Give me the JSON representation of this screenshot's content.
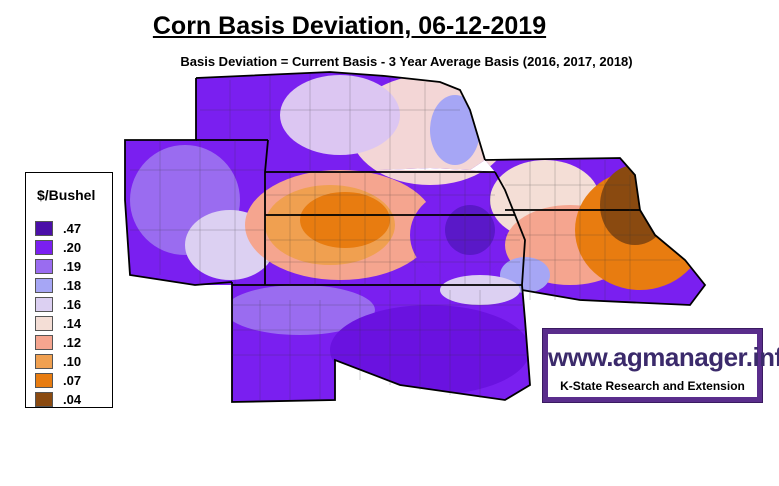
{
  "title": "Corn Basis Deviation, 06-12-2019",
  "subtitle": "Basis Deviation = Current Basis - 3 Year Average Basis (2016, 2017, 2018)",
  "legend": {
    "title": "$/Bushel",
    "items": [
      {
        "label": ".47",
        "color": "#4b0fa8"
      },
      {
        "label": ".20",
        "color": "#7a1ff0"
      },
      {
        "label": ".19",
        "color": "#9a6cf0"
      },
      {
        "label": ".18",
        "color": "#a6a6f5"
      },
      {
        "label": ".16",
        "color": "#dcd0f2"
      },
      {
        "label": ".14",
        "color": "#f4ded6"
      },
      {
        "label": ".12",
        "color": "#f5a58f"
      },
      {
        "label": ".10",
        "color": "#f0a050"
      },
      {
        "label": ".07",
        "color": "#e87c10"
      },
      {
        "label": ".04",
        "color": "#8a4a10"
      }
    ]
  },
  "brand": {
    "url": "www.agmanager.info",
    "org": "K-State Research and Extension"
  }
}
